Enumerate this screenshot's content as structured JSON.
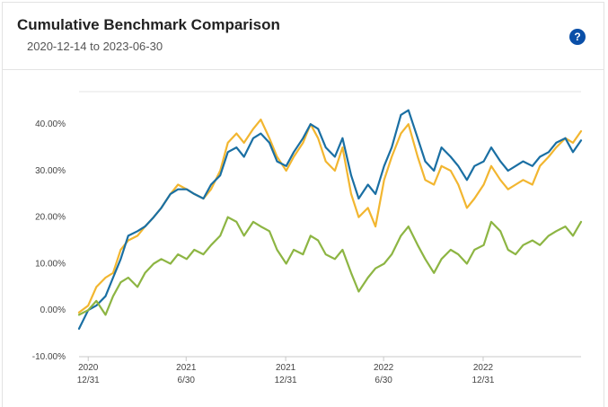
{
  "header": {
    "title": "Cumulative Benchmark Comparison",
    "subtitle": "2020-12-14 to 2023-06-30",
    "help_icon": "question-icon",
    "help_label": "?",
    "help_color": "#0a4fa8"
  },
  "chart_data": {
    "type": "line",
    "xlabel": "",
    "ylabel": "",
    "ylim": [
      -10,
      47
    ],
    "y_ticks": [
      -10,
      0,
      10,
      20,
      30,
      40
    ],
    "y_tick_labels": [
      "-10.00%",
      "0.00%",
      "10.00%",
      "20.00%",
      "30.00%",
      "40.00%"
    ],
    "x_ticks": [
      {
        "date": "2020-12-31",
        "label_year": "2020",
        "label_period": "12/31"
      },
      {
        "date": "2021-06-30",
        "label_year": "2021",
        "label_period": "6/30"
      },
      {
        "date": "2021-12-31",
        "label_year": "2021",
        "label_period": "12/31"
      },
      {
        "date": "2022-06-30",
        "label_year": "2022",
        "label_period": "6/30"
      },
      {
        "date": "2022-12-31",
        "label_year": "2022",
        "label_period": "12/31"
      }
    ],
    "xlim": [
      "2020-12-14",
      "2023-06-30"
    ],
    "grid": false,
    "legend": "none",
    "series": [
      {
        "color": "#f2b630",
        "points": [
          [
            "2020-12-14",
            -0.5
          ],
          [
            "2020-12-31",
            1
          ],
          [
            "2021-01-15",
            5
          ],
          [
            "2021-02-01",
            7
          ],
          [
            "2021-02-15",
            8
          ],
          [
            "2021-03-01",
            13
          ],
          [
            "2021-03-15",
            15
          ],
          [
            "2021-04-01",
            16
          ],
          [
            "2021-04-15",
            18
          ],
          [
            "2021-05-01",
            20
          ],
          [
            "2021-05-15",
            22
          ],
          [
            "2021-06-01",
            25
          ],
          [
            "2021-06-15",
            27
          ],
          [
            "2021-07-01",
            26
          ],
          [
            "2021-07-15",
            25
          ],
          [
            "2021-08-01",
            24
          ],
          [
            "2021-08-15",
            26
          ],
          [
            "2021-09-01",
            30
          ],
          [
            "2021-09-15",
            36
          ],
          [
            "2021-10-01",
            38
          ],
          [
            "2021-10-15",
            36
          ],
          [
            "2021-11-01",
            39
          ],
          [
            "2021-11-15",
            41
          ],
          [
            "2021-12-01",
            37
          ],
          [
            "2021-12-15",
            33
          ],
          [
            "2022-01-01",
            30
          ],
          [
            "2022-01-15",
            33
          ],
          [
            "2022-02-01",
            36
          ],
          [
            "2022-02-15",
            40
          ],
          [
            "2022-03-01",
            37
          ],
          [
            "2022-03-15",
            32
          ],
          [
            "2022-04-01",
            30
          ],
          [
            "2022-04-15",
            35
          ],
          [
            "2022-05-01",
            25
          ],
          [
            "2022-05-15",
            20
          ],
          [
            "2022-06-01",
            22
          ],
          [
            "2022-06-15",
            18
          ],
          [
            "2022-07-01",
            28
          ],
          [
            "2022-07-15",
            33
          ],
          [
            "2022-08-01",
            38
          ],
          [
            "2022-08-15",
            40
          ],
          [
            "2022-09-01",
            33
          ],
          [
            "2022-09-15",
            28
          ],
          [
            "2022-10-01",
            27
          ],
          [
            "2022-10-15",
            31
          ],
          [
            "2022-11-01",
            30
          ],
          [
            "2022-11-15",
            27
          ],
          [
            "2022-12-01",
            22
          ],
          [
            "2022-12-15",
            24
          ],
          [
            "2023-01-01",
            27
          ],
          [
            "2023-01-15",
            31
          ],
          [
            "2023-02-01",
            28
          ],
          [
            "2023-02-15",
            26
          ],
          [
            "2023-03-01",
            27
          ],
          [
            "2023-03-15",
            28
          ],
          [
            "2023-04-01",
            27
          ],
          [
            "2023-04-15",
            31
          ],
          [
            "2023-05-01",
            33
          ],
          [
            "2023-05-15",
            35
          ],
          [
            "2023-06-01",
            37
          ],
          [
            "2023-06-15",
            36
          ],
          [
            "2023-06-30",
            38.5
          ]
        ]
      },
      {
        "color": "#1a6fa3",
        "points": [
          [
            "2020-12-14",
            -4
          ],
          [
            "2020-12-31",
            0
          ],
          [
            "2021-01-15",
            1
          ],
          [
            "2021-02-01",
            3
          ],
          [
            "2021-02-15",
            7
          ],
          [
            "2021-03-01",
            11
          ],
          [
            "2021-03-15",
            16
          ],
          [
            "2021-04-01",
            17
          ],
          [
            "2021-04-15",
            18
          ],
          [
            "2021-05-01",
            20
          ],
          [
            "2021-05-15",
            22
          ],
          [
            "2021-06-01",
            25
          ],
          [
            "2021-06-15",
            26
          ],
          [
            "2021-07-01",
            26
          ],
          [
            "2021-07-15",
            25
          ],
          [
            "2021-08-01",
            24
          ],
          [
            "2021-08-15",
            27
          ],
          [
            "2021-09-01",
            29
          ],
          [
            "2021-09-15",
            34
          ],
          [
            "2021-10-01",
            35
          ],
          [
            "2021-10-15",
            33
          ],
          [
            "2021-11-01",
            37
          ],
          [
            "2021-11-15",
            38
          ],
          [
            "2021-12-01",
            36
          ],
          [
            "2021-12-15",
            32
          ],
          [
            "2022-01-01",
            31
          ],
          [
            "2022-01-15",
            34
          ],
          [
            "2022-02-01",
            37
          ],
          [
            "2022-02-15",
            40
          ],
          [
            "2022-03-01",
            39
          ],
          [
            "2022-03-15",
            35
          ],
          [
            "2022-04-01",
            33
          ],
          [
            "2022-04-15",
            37
          ],
          [
            "2022-05-01",
            29
          ],
          [
            "2022-05-15",
            24
          ],
          [
            "2022-06-01",
            27
          ],
          [
            "2022-06-15",
            25
          ],
          [
            "2022-07-01",
            31
          ],
          [
            "2022-07-15",
            35
          ],
          [
            "2022-08-01",
            42
          ],
          [
            "2022-08-15",
            43
          ],
          [
            "2022-09-01",
            37
          ],
          [
            "2022-09-15",
            32
          ],
          [
            "2022-10-01",
            30
          ],
          [
            "2022-10-15",
            35
          ],
          [
            "2022-11-01",
            33
          ],
          [
            "2022-11-15",
            31
          ],
          [
            "2022-12-01",
            28
          ],
          [
            "2022-12-15",
            31
          ],
          [
            "2023-01-01",
            32
          ],
          [
            "2023-01-15",
            35
          ],
          [
            "2023-02-01",
            32
          ],
          [
            "2023-02-15",
            30
          ],
          [
            "2023-03-01",
            31
          ],
          [
            "2023-03-15",
            32
          ],
          [
            "2023-04-01",
            31
          ],
          [
            "2023-04-15",
            33
          ],
          [
            "2023-05-01",
            34
          ],
          [
            "2023-05-15",
            36
          ],
          [
            "2023-06-01",
            37
          ],
          [
            "2023-06-15",
            34
          ],
          [
            "2023-06-30",
            36.5
          ]
        ]
      },
      {
        "color": "#8db543",
        "points": [
          [
            "2020-12-14",
            -1
          ],
          [
            "2020-12-31",
            0
          ],
          [
            "2021-01-15",
            2
          ],
          [
            "2021-02-01",
            -1
          ],
          [
            "2021-02-15",
            3
          ],
          [
            "2021-03-01",
            6
          ],
          [
            "2021-03-15",
            7
          ],
          [
            "2021-04-01",
            5
          ],
          [
            "2021-04-15",
            8
          ],
          [
            "2021-05-01",
            10
          ],
          [
            "2021-05-15",
            11
          ],
          [
            "2021-06-01",
            10
          ],
          [
            "2021-06-15",
            12
          ],
          [
            "2021-07-01",
            11
          ],
          [
            "2021-07-15",
            13
          ],
          [
            "2021-08-01",
            12
          ],
          [
            "2021-08-15",
            14
          ],
          [
            "2021-09-01",
            16
          ],
          [
            "2021-09-15",
            20
          ],
          [
            "2021-10-01",
            19
          ],
          [
            "2021-10-15",
            16
          ],
          [
            "2021-11-01",
            19
          ],
          [
            "2021-11-15",
            18
          ],
          [
            "2021-12-01",
            17
          ],
          [
            "2021-12-15",
            13
          ],
          [
            "2022-01-01",
            10
          ],
          [
            "2022-01-15",
            13
          ],
          [
            "2022-02-01",
            12
          ],
          [
            "2022-02-15",
            16
          ],
          [
            "2022-03-01",
            15
          ],
          [
            "2022-03-15",
            12
          ],
          [
            "2022-04-01",
            11
          ],
          [
            "2022-04-15",
            13
          ],
          [
            "2022-05-01",
            8
          ],
          [
            "2022-05-15",
            4
          ],
          [
            "2022-06-01",
            7
          ],
          [
            "2022-06-15",
            9
          ],
          [
            "2022-07-01",
            10
          ],
          [
            "2022-07-15",
            12
          ],
          [
            "2022-08-01",
            16
          ],
          [
            "2022-08-15",
            18
          ],
          [
            "2022-09-01",
            14
          ],
          [
            "2022-09-15",
            11
          ],
          [
            "2022-10-01",
            8
          ],
          [
            "2022-10-15",
            11
          ],
          [
            "2022-11-01",
            13
          ],
          [
            "2022-11-15",
            12
          ],
          [
            "2022-12-01",
            10
          ],
          [
            "2022-12-15",
            13
          ],
          [
            "2023-01-01",
            14
          ],
          [
            "2023-01-15",
            19
          ],
          [
            "2023-02-01",
            17
          ],
          [
            "2023-02-15",
            13
          ],
          [
            "2023-03-01",
            12
          ],
          [
            "2023-03-15",
            14
          ],
          [
            "2023-04-01",
            15
          ],
          [
            "2023-04-15",
            14
          ],
          [
            "2023-05-01",
            16
          ],
          [
            "2023-05-15",
            17
          ],
          [
            "2023-06-01",
            18
          ],
          [
            "2023-06-15",
            16
          ],
          [
            "2023-06-30",
            19
          ]
        ]
      }
    ]
  }
}
